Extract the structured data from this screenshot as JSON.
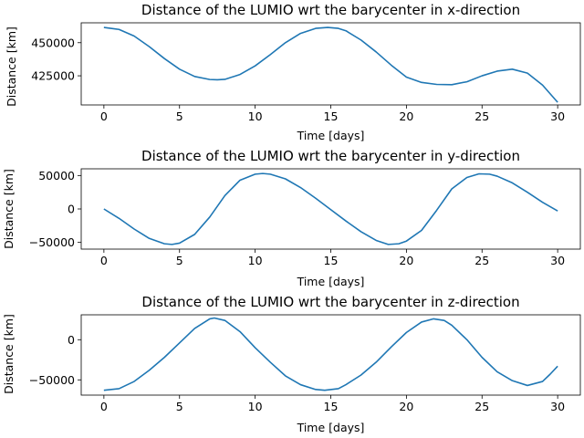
{
  "chart_data": [
    {
      "type": "line",
      "title": "Distance of the LUMIO wrt the barycenter in x-direction",
      "xlabel": "Time [days]",
      "ylabel": "Distance [km]",
      "xlim": [
        -1.5,
        31.5
      ],
      "ylim": [
        403000,
        465000
      ],
      "xticks": [
        0,
        5,
        10,
        15,
        20,
        25,
        30
      ],
      "yticks": [
        425000,
        450000
      ],
      "grid": false,
      "line_color": "#1f77b4",
      "series": [
        {
          "x": [
            0,
            1,
            2,
            3,
            4,
            5,
            6,
            7,
            7.5,
            8,
            9,
            10,
            11,
            12,
            13,
            14,
            14.8,
            15.5,
            16,
            17,
            18,
            19,
            20,
            21,
            22,
            23,
            24,
            25,
            26,
            27,
            28,
            29,
            30
          ],
          "values": [
            461500,
            460000,
            455000,
            447000,
            438000,
            430000,
            424500,
            422200,
            422000,
            422300,
            426000,
            432500,
            441000,
            450000,
            457000,
            460800,
            461500,
            460800,
            459000,
            452000,
            443000,
            433000,
            424000,
            420000,
            418500,
            418300,
            420500,
            425000,
            428500,
            430000,
            427000,
            418000,
            405000
          ]
        }
      ]
    },
    {
      "type": "line",
      "title": "Distance of the LUMIO wrt the barycenter in y-direction",
      "xlabel": "Time [days]",
      "ylabel": "Distance [km]",
      "xlim": [
        -1.5,
        31.5
      ],
      "ylim": [
        -60000,
        60000
      ],
      "xticks": [
        0,
        5,
        10,
        15,
        20,
        25,
        30
      ],
      "yticks": [
        -50000,
        0,
        50000
      ],
      "grid": false,
      "line_color": "#1f77b4",
      "series": [
        {
          "x": [
            0,
            1,
            2,
            3,
            4,
            4.5,
            5,
            6,
            7,
            8,
            9,
            10,
            10.5,
            11,
            12,
            13,
            14,
            15,
            16,
            17,
            18,
            18.8,
            19.5,
            20,
            21,
            22,
            23,
            24,
            24.8,
            25.5,
            26,
            27,
            28,
            29,
            30
          ],
          "values": [
            0,
            -14000,
            -30000,
            -44000,
            -52000,
            -53000,
            -51000,
            -38000,
            -12000,
            20000,
            43000,
            52000,
            53000,
            52000,
            45000,
            32000,
            16000,
            -1000,
            -18000,
            -34000,
            -47000,
            -53000,
            -52000,
            -48000,
            -32000,
            -2000,
            30000,
            47000,
            52500,
            52000,
            49000,
            39000,
            25000,
            10000,
            -3000
          ]
        }
      ]
    },
    {
      "type": "line",
      "title": "Distance of the LUMIO wrt the barycenter in z-direction",
      "xlabel": "Time [days]",
      "ylabel": "Distance [km]",
      "xlim": [
        -1.5,
        31.5
      ],
      "ylim": [
        -69000,
        31000
      ],
      "xticks": [
        0,
        5,
        10,
        15,
        20,
        25,
        30
      ],
      "yticks": [
        -50000,
        0
      ],
      "grid": false,
      "line_color": "#1f77b4",
      "series": [
        {
          "x": [
            0,
            1,
            2,
            3,
            4,
            5,
            6,
            7,
            7.3,
            8,
            9,
            10,
            11,
            12,
            13,
            14,
            14.6,
            15.5,
            16,
            17,
            18,
            19,
            20,
            21,
            21.8,
            22.5,
            23,
            24,
            25,
            26,
            27,
            28,
            29,
            29.5,
            30
          ],
          "values": [
            -63000,
            -61000,
            -52000,
            -38000,
            -22000,
            -4000,
            14000,
            26000,
            27000,
            24000,
            10000,
            -10000,
            -28000,
            -45000,
            -56000,
            -62000,
            -63000,
            -61000,
            -56000,
            -44000,
            -28000,
            -9000,
            9000,
            22000,
            26000,
            24000,
            18000,
            0,
            -22000,
            -40000,
            -51000,
            -57000,
            -52000,
            -43000,
            -33000
          ]
        }
      ]
    }
  ]
}
